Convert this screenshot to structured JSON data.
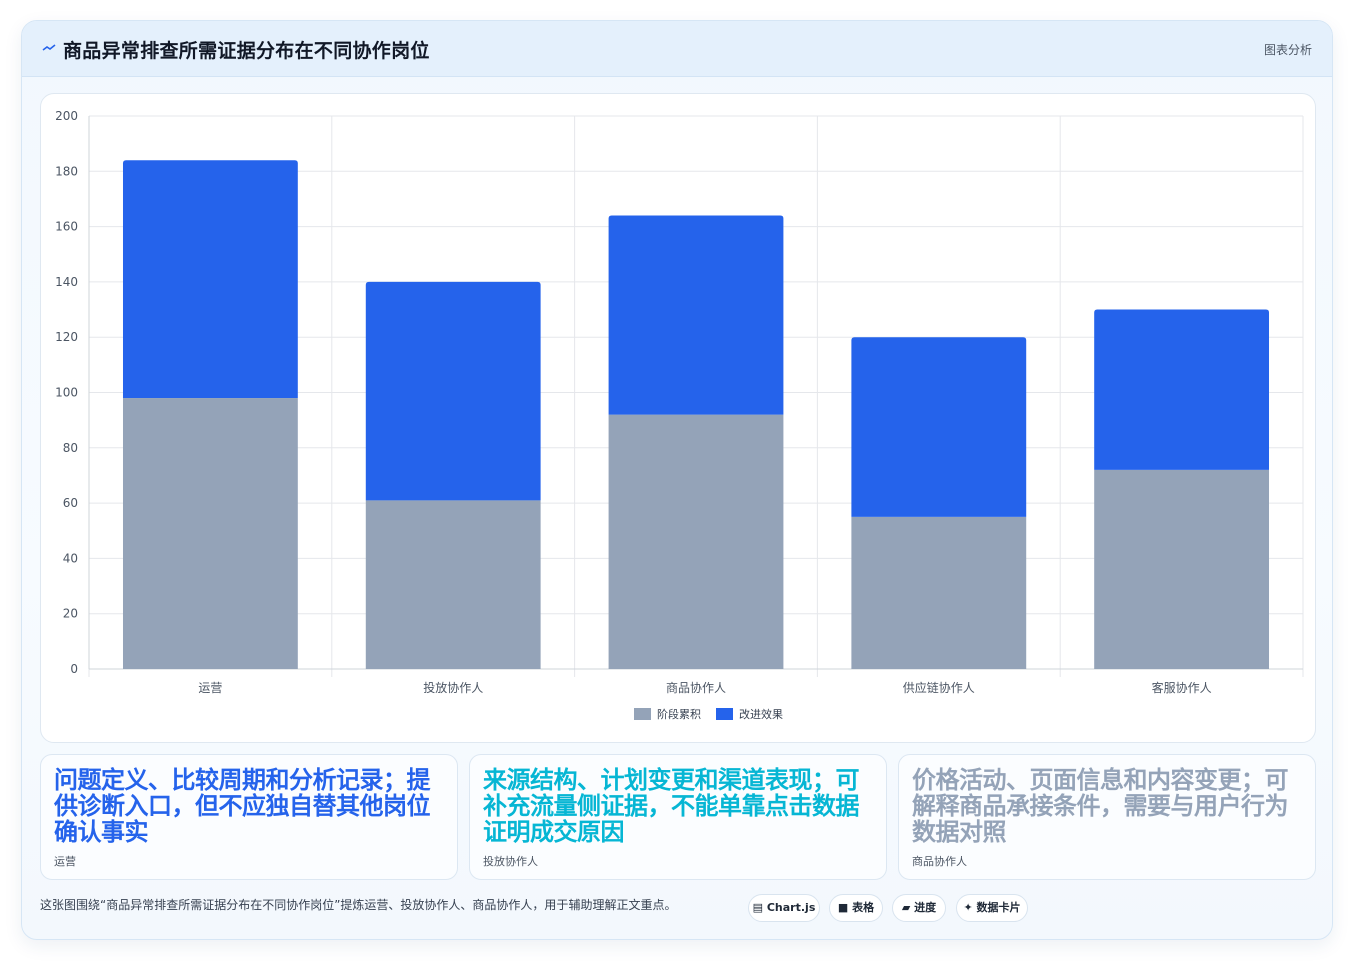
{
  "header": {
    "icon": "chart-line-icon",
    "title": "商品异常排查所需证据分布在不同协作岗位",
    "tag": "图表分析"
  },
  "chart_data": {
    "type": "bar",
    "stacked": true,
    "categories": [
      "运营",
      "投放协作人",
      "商品协作人",
      "供应链协作人",
      "客服协作人"
    ],
    "series": [
      {
        "name": "阶段累积",
        "color": "#94a3b8",
        "values": [
          98,
          61,
          92,
          55,
          72
        ]
      },
      {
        "name": "改进效果",
        "color": "#2563eb",
        "values": [
          86,
          79,
          72,
          65,
          58
        ]
      }
    ],
    "ylim": [
      0,
      200
    ],
    "yticks": [
      0,
      20,
      40,
      60,
      80,
      100,
      120,
      140,
      160,
      180,
      200
    ],
    "grid": true,
    "legend_position": "bottom"
  },
  "cards": [
    {
      "text": "问题定义、比较周期和分析记录；提供诊断入口，但不应独自替其他岗位确认事实",
      "label": "运营",
      "color": "#2563eb"
    },
    {
      "text": "来源结构、计划变更和渠道表现；可补充流量侧证据，不能单靠点击数据证明成交原因",
      "label": "投放协作人",
      "color": "#06b6d4"
    },
    {
      "text": "价格活动、页面信息和内容变更；可解释商品承接条件，需要与用户行为数据对照",
      "label": "商品协作人",
      "color": "#94a3b8"
    }
  ],
  "footer": {
    "caption": "这张图围绕“商品异常排查所需证据分布在不同协作岗位”提炼运营、投放协作人、商品协作人，用于辅助理解正文重点。",
    "pills": [
      {
        "icon": "chart-icon",
        "glyph": "▤",
        "label": "Chart.js"
      },
      {
        "icon": "table-icon",
        "glyph": "■",
        "label": "表格"
      },
      {
        "icon": "progress-icon",
        "glyph": "▰",
        "label": "进度"
      },
      {
        "icon": "sparkle-icon",
        "glyph": "✦",
        "label": "数据卡片"
      }
    ]
  }
}
